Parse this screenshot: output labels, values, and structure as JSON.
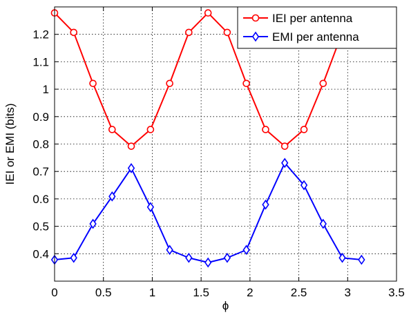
{
  "chart_data": {
    "type": "line",
    "xlabel": "ϕ",
    "ylabel": "IEI or EMI (bits)",
    "xlim": [
      0,
      3.5
    ],
    "ylim": [
      0.3,
      1.3
    ],
    "xticks": [
      0,
      0.5,
      1,
      1.5,
      2,
      2.5,
      3,
      3.5
    ],
    "xtick_labels": [
      "0",
      "0.5",
      "1",
      "1.5",
      "2",
      "2.5",
      "3",
      "3.5"
    ],
    "yticks": [
      0.4,
      0.5,
      0.6,
      0.7,
      0.8,
      0.9,
      1.0,
      1.1,
      1.2
    ],
    "ytick_labels": [
      "0.4",
      "0.5",
      "0.6",
      "0.7",
      "0.8",
      "0.9",
      "1",
      "1.1",
      "1.2"
    ],
    "grid": true,
    "legend_position": "top-right",
    "x": [
      0,
      0.196,
      0.393,
      0.589,
      0.785,
      0.982,
      1.178,
      1.374,
      1.571,
      1.767,
      1.963,
      2.16,
      2.356,
      2.553,
      2.749,
      2.945,
      3.142
    ],
    "series": [
      {
        "name": "IEI per antenna",
        "color": "#ff0000",
        "marker": "circle",
        "values": [
          1.278,
          1.207,
          1.021,
          0.853,
          0.792,
          0.853,
          1.021,
          1.207,
          1.278,
          1.207,
          1.021,
          0.853,
          0.792,
          0.853,
          1.021,
          1.207,
          1.278
        ]
      },
      {
        "name": "EMI per antenna",
        "color": "#0000ff",
        "marker": "diamond",
        "values": [
          0.378,
          0.385,
          0.509,
          0.609,
          0.712,
          0.57,
          0.414,
          0.385,
          0.368,
          0.385,
          0.414,
          0.579,
          0.731,
          0.65,
          0.509,
          0.385,
          0.378
        ]
      }
    ]
  }
}
